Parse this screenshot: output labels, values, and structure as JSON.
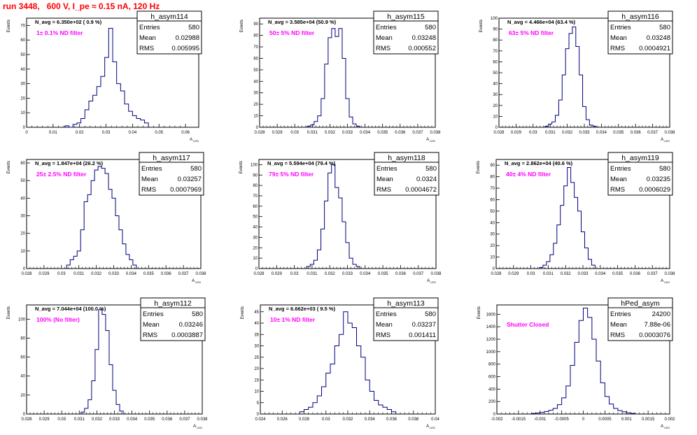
{
  "page_title": "run 3448,   600 V, I_pe ≈ 0.15 nA, 120 Hz",
  "colors": {
    "histogram_line": "#00007f",
    "annotation": "#ff00ff",
    "title_text": "#ff0000",
    "frame": "#000000"
  },
  "chart_data": [
    {
      "type": "histogram",
      "histogram_name": "h_asym114",
      "stats": {
        "Entries": "580",
        "Mean": "0.02988",
        "RMS": "0.005995"
      },
      "navg_label": "N_avg = 6.350e+02 ( 0.9 %)",
      "filter_label": "1± 0.1% ND filter",
      "ylabel": "Events",
      "xlabel": "A_LED",
      "xlim": [
        0,
        0.065
      ],
      "ylim": [
        0,
        75
      ],
      "xticks": [
        "0",
        "0.01",
        "0.02",
        "0.03",
        "0.04",
        "0.05",
        "0.06"
      ],
      "xtick_values": [
        0,
        0.01,
        0.02,
        0.03,
        0.04,
        0.05,
        0.06
      ],
      "yticks": [
        0,
        10,
        20,
        30,
        40,
        50,
        60,
        70
      ],
      "bin_edges": [
        0.0145,
        0.016,
        0.0175,
        0.019,
        0.0205,
        0.022,
        0.0235,
        0.025,
        0.0265,
        0.028,
        0.0295,
        0.031,
        0.0325,
        0.034,
        0.0355,
        0.037,
        0.0385,
        0.04,
        0.0415,
        0.043,
        0.0445,
        0.046
      ],
      "counts": [
        1,
        0,
        2,
        3,
        6,
        12,
        18,
        22,
        28,
        35,
        48,
        68,
        45,
        30,
        25,
        16,
        11,
        8,
        6,
        5,
        3
      ]
    },
    {
      "type": "histogram",
      "histogram_name": "h_asym115",
      "stats": {
        "Entries": "580",
        "Mean": "0.03248",
        "RMS": "0.000552"
      },
      "navg_label": "N_avg = 3.585e+04 (50.9 %)",
      "filter_label": "50± 5% ND filter",
      "ylabel": "Events",
      "xlabel": "A_LED",
      "xlim": [
        0.028,
        0.038
      ],
      "ylim": [
        0,
        95
      ],
      "xticks": [
        "0.028",
        "0.029",
        "0.03",
        "0.031",
        "0.032",
        "0.033",
        "0.034",
        "0.035",
        "0.036",
        "0.037",
        "0.038"
      ],
      "xtick_values": [
        0.028,
        0.029,
        0.03,
        0.031,
        0.032,
        0.033,
        0.034,
        0.035,
        0.036,
        0.037,
        0.038
      ],
      "yticks": [
        0,
        10,
        20,
        30,
        40,
        50,
        60,
        70,
        80,
        90
      ],
      "bin_edges": [
        0.0307,
        0.0309,
        0.0311,
        0.0313,
        0.0315,
        0.0317,
        0.0319,
        0.0321,
        0.0323,
        0.0325,
        0.0327,
        0.0329,
        0.0331,
        0.0333,
        0.0335,
        0.0337
      ],
      "counts": [
        1,
        2,
        5,
        10,
        25,
        55,
        78,
        86,
        79,
        86,
        60,
        25,
        9,
        3,
        1
      ]
    },
    {
      "type": "histogram",
      "histogram_name": "h_asym116",
      "stats": {
        "Entries": "580",
        "Mean": "0.03248",
        "RMS": "0.0004921"
      },
      "navg_label": "N_avg = 4.466e+04 (63.4 %)",
      "filter_label": "63± 5% ND filter",
      "ylabel": "Events",
      "xlabel": "A_LED",
      "xlim": [
        0.028,
        0.038
      ],
      "ylim": [
        0,
        100
      ],
      "xticks": [
        "0.028",
        "0.029",
        "0.03",
        "0.031",
        "0.032",
        "0.033",
        "0.034",
        "0.035",
        "0.036",
        "0.037",
        "0.038"
      ],
      "xtick_values": [
        0.028,
        0.029,
        0.03,
        0.031,
        0.032,
        0.033,
        0.034,
        0.035,
        0.036,
        0.037,
        0.038
      ],
      "yticks": [
        0,
        10,
        20,
        30,
        40,
        50,
        60,
        70,
        80,
        90,
        100
      ],
      "bin_edges": [
        0.0307,
        0.0309,
        0.0311,
        0.0313,
        0.0315,
        0.0317,
        0.0319,
        0.0321,
        0.0323,
        0.0325,
        0.0327,
        0.0329,
        0.0331,
        0.0333,
        0.0335,
        0.0337
      ],
      "counts": [
        1,
        3,
        5,
        11,
        25,
        48,
        72,
        86,
        92,
        74,
        48,
        19,
        7,
        2,
        1
      ]
    },
    {
      "type": "histogram",
      "histogram_name": "h_asym117",
      "stats": {
        "Entries": "580",
        "Mean": "0.03257",
        "RMS": "0.0007969"
      },
      "navg_label": "N_avg = 1.847e+04 (26.2 %)",
      "filter_label": "25± 2.5% ND filter",
      "ylabel": "Events",
      "xlabel": "A_LED",
      "xlim": [
        0.028,
        0.038
      ],
      "ylim": [
        0,
        62
      ],
      "xticks": [
        "0.028",
        "0.029",
        "0.03",
        "0.031",
        "0.032",
        "0.033",
        "0.034",
        "0.035",
        "0.036",
        "0.037",
        "0.038"
      ],
      "xtick_values": [
        0.028,
        0.029,
        0.03,
        0.031,
        0.032,
        0.033,
        0.034,
        0.035,
        0.036,
        0.037,
        0.038
      ],
      "yticks": [
        0,
        10,
        20,
        30,
        40,
        50,
        60
      ],
      "bin_edges": [
        0.0303,
        0.0305,
        0.0307,
        0.0309,
        0.0311,
        0.0313,
        0.0315,
        0.0317,
        0.0319,
        0.0321,
        0.0323,
        0.0325,
        0.0327,
        0.0329,
        0.0331,
        0.0333,
        0.0335,
        0.0337,
        0.0339,
        0.0341,
        0.0343
      ],
      "counts": [
        2,
        5,
        7,
        10,
        22,
        38,
        42,
        50,
        56,
        58,
        57,
        54,
        45,
        40,
        30,
        22,
        14,
        8,
        5,
        2
      ]
    },
    {
      "type": "histogram",
      "histogram_name": "h_asym118",
      "stats": {
        "Entries": "580",
        "Mean": "0.0324",
        "RMS": "0.0004672"
      },
      "navg_label": "N_avg = 5.594e+04 (79.4 %)",
      "filter_label": "79± 5% ND filter",
      "ylabel": "Events",
      "xlabel": "A_LED",
      "xlim": [
        0.028,
        0.038
      ],
      "ylim": [
        0,
        105
      ],
      "xticks": [
        "0.028",
        "0.029",
        "0.03",
        "0.031",
        "0.032",
        "0.033",
        "0.034",
        "0.035",
        "0.036",
        "0.037",
        "0.038"
      ],
      "xtick_values": [
        0.028,
        0.029,
        0.03,
        0.031,
        0.032,
        0.033,
        0.034,
        0.035,
        0.036,
        0.037,
        0.038
      ],
      "yticks": [
        0,
        10,
        20,
        30,
        40,
        50,
        60,
        70,
        80,
        90,
        100
      ],
      "bin_edges": [
        0.0307,
        0.0309,
        0.0311,
        0.0313,
        0.0315,
        0.0317,
        0.0319,
        0.0321,
        0.0323,
        0.0325,
        0.0327,
        0.0329,
        0.0331,
        0.0333,
        0.0335,
        0.0337
      ],
      "counts": [
        2,
        4,
        8,
        18,
        38,
        65,
        92,
        100,
        78,
        68,
        45,
        25,
        10,
        4,
        2
      ]
    },
    {
      "type": "histogram",
      "histogram_name": "h_asym119",
      "stats": {
        "Entries": "580",
        "Mean": "0.03235",
        "RMS": "0.0006029"
      },
      "navg_label": "N_avg = 2.862e+04 (40.6 %)",
      "filter_label": "40± 4% ND filter",
      "ylabel": "Events",
      "xlabel": "A_LED",
      "xlim": [
        0.028,
        0.038
      ],
      "ylim": [
        0,
        95
      ],
      "xticks": [
        "0.028",
        "0.029",
        "0.03",
        "0.031",
        "0.032",
        "0.033",
        "0.034",
        "0.035",
        "0.036",
        "0.037",
        "0.038"
      ],
      "xtick_values": [
        0.028,
        0.029,
        0.03,
        0.031,
        0.032,
        0.033,
        0.034,
        0.035,
        0.036,
        0.037,
        0.038
      ],
      "yticks": [
        0,
        10,
        20,
        30,
        40,
        50,
        60,
        70,
        80,
        90
      ],
      "bin_edges": [
        0.0305,
        0.0307,
        0.0309,
        0.0311,
        0.0313,
        0.0315,
        0.0317,
        0.0319,
        0.0321,
        0.0323,
        0.0325,
        0.0327,
        0.0329,
        0.0331,
        0.0333,
        0.0335,
        0.0337
      ],
      "counts": [
        1,
        3,
        6,
        12,
        22,
        38,
        55,
        72,
        88,
        75,
        62,
        50,
        32,
        18,
        8,
        3
      ]
    },
    {
      "type": "histogram",
      "histogram_name": "h_asym112",
      "stats": {
        "Entries": "580",
        "Mean": "0.03246",
        "RMS": "0.0003887"
      },
      "navg_label": "N_avg = 7.044e+04 (100.0 %)",
      "filter_label": "100% (No filter)",
      "ylabel": "Events",
      "xlabel": "A_LED",
      "xlim": [
        0.028,
        0.038
      ],
      "ylim": [
        0,
        115
      ],
      "xticks": [
        "0.028",
        "0.029",
        "0.03",
        "0.031",
        "0.032",
        "0.033",
        "0.034",
        "0.035",
        "0.036",
        "0.037",
        "0.038"
      ],
      "xtick_values": [
        0.028,
        0.029,
        0.03,
        0.031,
        0.032,
        0.033,
        0.034,
        0.035,
        0.036,
        0.037,
        0.038
      ],
      "yticks": [
        0,
        20,
        40,
        60,
        80,
        100
      ],
      "bin_edges": [
        0.0311,
        0.0313,
        0.0315,
        0.0317,
        0.0319,
        0.0321,
        0.0323,
        0.0325,
        0.0327,
        0.0329,
        0.0331,
        0.0333,
        0.0335
      ],
      "counts": [
        2,
        6,
        15,
        35,
        68,
        110,
        105,
        88,
        52,
        25,
        10,
        3
      ]
    },
    {
      "type": "histogram",
      "histogram_name": "h_asym113",
      "stats": {
        "Entries": "580",
        "Mean": "0.03237",
        "RMS": "0.001411"
      },
      "navg_label": "N_avg = 6.662e+03 ( 9.5 %)",
      "filter_label": "10± 1% ND filter",
      "ylabel": "Events",
      "xlabel": "A_LED",
      "xlim": [
        0.024,
        0.04
      ],
      "ylim": [
        0,
        48
      ],
      "xticks": [
        "0.024",
        "0.026",
        "0.028",
        "0.03",
        "0.032",
        "0.034",
        "0.036",
        "0.038",
        "0.04"
      ],
      "xtick_values": [
        0.024,
        0.026,
        0.028,
        0.03,
        0.032,
        0.034,
        0.036,
        0.038,
        0.04
      ],
      "yticks": [
        0,
        5,
        10,
        15,
        20,
        25,
        30,
        35,
        40,
        45
      ],
      "bin_edges": [
        0.0276,
        0.028,
        0.0284,
        0.0288,
        0.0292,
        0.0296,
        0.03,
        0.0304,
        0.0308,
        0.0312,
        0.0316,
        0.032,
        0.0324,
        0.0328,
        0.0332,
        0.0336,
        0.034,
        0.0344,
        0.0348,
        0.0352,
        0.0356,
        0.036,
        0.0364
      ],
      "counts": [
        1,
        2,
        3,
        5,
        8,
        12,
        18,
        22,
        30,
        35,
        45,
        40,
        38,
        30,
        25,
        15,
        10,
        6,
        4,
        3,
        2,
        1
      ]
    },
    {
      "type": "histogram",
      "histogram_name": "hPed_asym",
      "stats": {
        "Entries": "24200",
        "Mean": "7.88e-06",
        "RMS": "0.0003076"
      },
      "navg_label": "",
      "filter_label": "Shutter Closed",
      "ylabel": "Events",
      "xlabel": "A_LED",
      "xlim": [
        -0.002,
        0.002
      ],
      "ylim": [
        0,
        1750
      ],
      "xticks": [
        "-0.002",
        "-0.0015",
        "-0.001",
        "-0.0005",
        "0",
        "0.0005",
        "0.001",
        "0.0015",
        "0.002"
      ],
      "xtick_values": [
        -0.002,
        -0.0015,
        -0.001,
        -0.0005,
        0,
        0.0005,
        0.001,
        0.0015,
        0.002
      ],
      "yticks": [
        0,
        200,
        400,
        600,
        800,
        1000,
        1200,
        1400,
        1600
      ],
      "bin_edges": [
        -0.0012,
        -0.0011,
        -0.001,
        -0.0009,
        -0.0008,
        -0.0007,
        -0.0006,
        -0.0005,
        -0.0004,
        -0.0003,
        -0.0002,
        -0.0001,
        0,
        0.0001,
        0.0002,
        0.0003,
        0.0004,
        0.0005,
        0.0006,
        0.0007,
        0.0008,
        0.0009,
        0.001,
        0.0011,
        0.0012
      ],
      "counts": [
        10,
        15,
        25,
        40,
        60,
        90,
        150,
        260,
        450,
        780,
        1150,
        1500,
        1700,
        1550,
        1200,
        850,
        500,
        280,
        160,
        90,
        55,
        35,
        20,
        10
      ]
    }
  ]
}
